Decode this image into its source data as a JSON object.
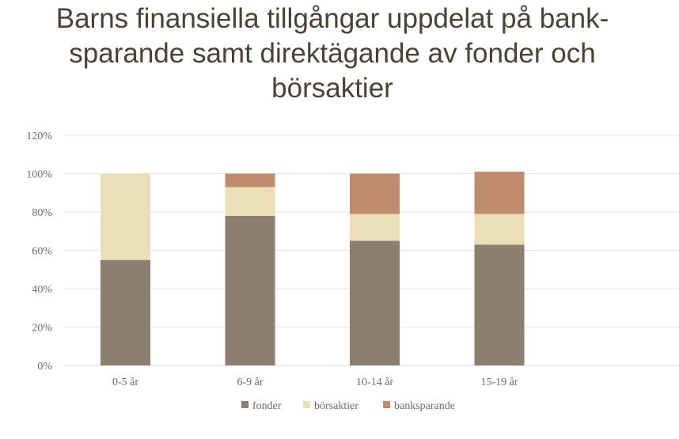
{
  "chart_data": {
    "type": "bar",
    "stacked": true,
    "title": "Barns finansiella tillgångar uppdelat på bank-sparande samt direktägande av fonder och börsaktier",
    "categories": [
      "0-5 år",
      "6-9 år",
      "10-14 år",
      "15-19 år"
    ],
    "series": [
      {
        "name": "fonder",
        "color": "#8c7f6d",
        "values": [
          55,
          78,
          65,
          63
        ]
      },
      {
        "name": "börsaktier",
        "color": "#eadfb6",
        "values": [
          45,
          15,
          14,
          16
        ]
      },
      {
        "name": "banksparande",
        "color": "#bf8c70",
        "values": [
          0,
          7,
          21,
          22
        ]
      }
    ],
    "ylim": [
      0,
      120
    ],
    "yticks": [
      "0%",
      "20%",
      "40%",
      "60%",
      "80%",
      "100%",
      "120%"
    ],
    "ytick_values": [
      0,
      20,
      40,
      60,
      80,
      100,
      120
    ],
    "xlabel": "",
    "ylabel": "",
    "grid": true,
    "legend_position": "bottom"
  }
}
